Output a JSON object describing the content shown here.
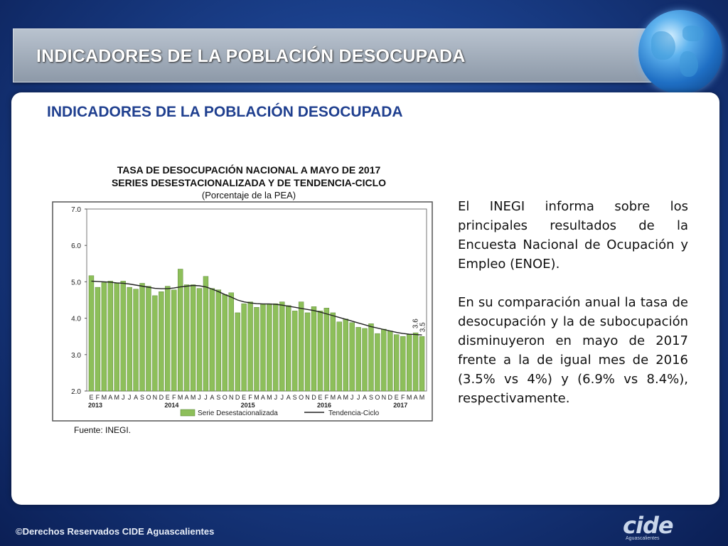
{
  "slide": {
    "header_title": "INDICADORES DE LA POBLACIÓN DESOCUPADA",
    "subtitle": "INDICADORES DE LA POBLACIÓN DESOCUPADA",
    "paragraphs": [
      "El INEGI informa sobre los principales resultados de la Encuesta Nacional de Ocupación y Empleo (ENOE).",
      "En su comparación anual la tasa de desocupación y la de subocupación disminuyeron en mayo de 2017 frente a la de igual mes de 2016 (3.5% vs 4%) y (6.9% vs 8.4%), respectivamente."
    ],
    "footer": "©Derechos Reservados CIDE Aguascalientes",
    "logo_text": "cide",
    "logo_sub": "Aguascalientes",
    "source": "Fuente: INEGI."
  },
  "chart_data": {
    "type": "bar",
    "title_line1": "TASA DE DESOCUPACIÓN NACIONAL A MAYO DE 2017",
    "title_line2": "SERIES DESESTACIONALIZADA Y DE TENDENCIA-CICLO",
    "title_line3": "(Porcentaje de la PEA)",
    "ylim": [
      2.0,
      7.0
    ],
    "yticks": [
      "7.0",
      "6.0",
      "5.0",
      "4.0",
      "3.0",
      "2.0"
    ],
    "month_labels": [
      "E",
      "F",
      "M",
      "A",
      "M",
      "J",
      "J",
      "A",
      "S",
      "O",
      "N",
      "D",
      "E",
      "F",
      "M",
      "A",
      "M",
      "J",
      "J",
      "A",
      "S",
      "O",
      "N",
      "D",
      "E",
      "F",
      "M",
      "A",
      "M",
      "J",
      "J",
      "A",
      "S",
      "O",
      "N",
      "D",
      "E",
      "F",
      "M",
      "A",
      "M",
      "J",
      "J",
      "A",
      "S",
      "O",
      "N",
      "D",
      "E",
      "F",
      "M",
      "A",
      "M"
    ],
    "years": [
      {
        "label": "2013",
        "start_index": 0
      },
      {
        "label": "2014",
        "start_index": 12
      },
      {
        "label": "2015",
        "start_index": 24
      },
      {
        "label": "2016",
        "start_index": 36
      },
      {
        "label": "2017",
        "start_index": 48
      }
    ],
    "series": [
      {
        "name": "Serie Desestacionalizada",
        "color": "#8dbf5a",
        "values": [
          5.17,
          4.85,
          4.98,
          5.02,
          4.96,
          5.02,
          4.85,
          4.8,
          4.96,
          4.88,
          4.62,
          4.73,
          4.88,
          4.78,
          5.35,
          4.92,
          4.92,
          4.82,
          5.15,
          4.82,
          4.78,
          4.65,
          4.7,
          4.15,
          4.4,
          4.45,
          4.3,
          4.4,
          4.4,
          4.4,
          4.45,
          4.35,
          4.2,
          4.45,
          4.15,
          4.32,
          4.2,
          4.28,
          4.15,
          3.9,
          3.98,
          3.88,
          3.75,
          3.72,
          3.85,
          3.58,
          3.7,
          3.65,
          3.55,
          3.5,
          3.55,
          3.6,
          3.5
        ]
      },
      {
        "name": "Tendencia-Ciclo",
        "color": "#222222",
        "values": [
          5.02,
          5.01,
          5.0,
          4.99,
          4.97,
          4.96,
          4.94,
          4.91,
          4.88,
          4.85,
          4.82,
          4.81,
          4.81,
          4.83,
          4.86,
          4.88,
          4.9,
          4.89,
          4.86,
          4.8,
          4.73,
          4.65,
          4.58,
          4.5,
          4.45,
          4.42,
          4.4,
          4.39,
          4.39,
          4.38,
          4.36,
          4.33,
          4.3,
          4.27,
          4.24,
          4.21,
          4.17,
          4.12,
          4.07,
          4.02,
          3.97,
          3.92,
          3.87,
          3.82,
          3.77,
          3.73,
          3.69,
          3.65,
          3.61,
          3.58,
          3.56,
          3.55,
          3.54
        ]
      }
    ],
    "annotations": [
      "3.6",
      "3.5"
    ],
    "legend": [
      "Serie Desestacionalizada",
      "Tendencia-Ciclo"
    ]
  },
  "colors": {
    "bar_fill": "#8dbf5a",
    "bar_stroke": "#4f7a2a",
    "trend_line": "#222222",
    "subtitle": "#1f3f8f"
  }
}
